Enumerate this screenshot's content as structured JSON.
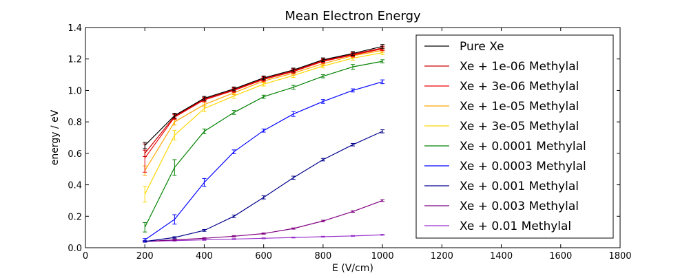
{
  "chart_data": {
    "type": "line",
    "title": "Mean Electron Energy",
    "xlabel": "E (V/cm)",
    "ylabel": "energy / eV",
    "xlim": [
      0,
      1800
    ],
    "ylim": [
      0,
      1.4
    ],
    "xticks": [
      0,
      200,
      400,
      600,
      800,
      1000,
      1200,
      1400,
      1600,
      1800
    ],
    "yticks": [
      0.0,
      0.2,
      0.4,
      0.6,
      0.8,
      1.0,
      1.2,
      1.4
    ],
    "xticklabels": [
      "0",
      "200",
      "400",
      "600",
      "800",
      "1000",
      "1200",
      "1400",
      "1600",
      "1800"
    ],
    "yticklabels": [
      "0.0",
      "0.2",
      "0.4",
      "0.6",
      "0.8",
      "1.0",
      "1.2",
      "1.4"
    ],
    "grid": false,
    "legend_position": "right",
    "x": [
      200,
      300,
      400,
      500,
      600,
      700,
      800,
      900,
      1000
    ],
    "series": [
      {
        "name": "Pure Xe",
        "color": "#000000",
        "values": [
          0.65,
          0.84,
          0.95,
          1.01,
          1.08,
          1.13,
          1.195,
          1.235,
          1.28
        ],
        "errors": [
          0.02,
          0.015,
          0.012,
          0.012,
          0.012,
          0.012,
          0.012,
          0.012,
          0.012
        ]
      },
      {
        "name": "Xe + 1e-06 Methylal",
        "color": "#cc0000",
        "values": [
          0.6,
          0.835,
          0.945,
          1.005,
          1.075,
          1.125,
          1.19,
          1.23,
          1.27
        ],
        "errors": [
          0.02,
          0.015,
          0.012,
          0.012,
          0.012,
          0.012,
          0.012,
          0.012,
          0.012
        ]
      },
      {
        "name": "Xe + 3e-06 Methylal",
        "color": "#ee0000",
        "values": [
          0.57,
          0.83,
          0.94,
          1.0,
          1.07,
          1.12,
          1.185,
          1.225,
          1.265
        ],
        "errors": [
          0.09,
          0.015,
          0.012,
          0.012,
          0.012,
          0.012,
          0.012,
          0.012,
          0.012
        ]
      },
      {
        "name": "Xe + 1e-05 Methylal",
        "color": "#ffa500",
        "values": [
          0.49,
          0.8,
          0.91,
          0.985,
          1.06,
          1.11,
          1.17,
          1.22,
          1.255
        ],
        "errors": [
          0.03,
          0.02,
          0.015,
          0.012,
          0.012,
          0.012,
          0.012,
          0.012,
          0.012
        ]
      },
      {
        "name": "Xe + 3e-05 Methylal",
        "color": "#ffd700",
        "values": [
          0.34,
          0.715,
          0.885,
          0.965,
          1.04,
          1.095,
          1.155,
          1.205,
          1.24
        ],
        "errors": [
          0.05,
          0.03,
          0.02,
          0.015,
          0.012,
          0.012,
          0.012,
          0.012,
          0.012
        ]
      },
      {
        "name": "Xe + 0.0001 Methylal",
        "color": "#008000",
        "values": [
          0.13,
          0.51,
          0.74,
          0.86,
          0.96,
          1.02,
          1.09,
          1.15,
          1.185
        ],
        "errors": [
          0.03,
          0.05,
          0.015,
          0.012,
          0.01,
          0.012,
          0.01,
          0.015,
          0.01
        ]
      },
      {
        "name": "Xe + 0.0003 Methylal",
        "color": "#0000ff",
        "values": [
          0.05,
          0.18,
          0.415,
          0.61,
          0.745,
          0.85,
          0.93,
          1.0,
          1.055
        ],
        "errors": [
          0.008,
          0.03,
          0.025,
          0.012,
          0.01,
          0.015,
          0.012,
          0.01,
          0.012
        ]
      },
      {
        "name": "Xe + 0.001 Methylal",
        "color": "#00008b",
        "values": [
          0.04,
          0.065,
          0.11,
          0.2,
          0.32,
          0.445,
          0.56,
          0.655,
          0.74
        ],
        "errors": [
          0.005,
          0.005,
          0.006,
          0.008,
          0.01,
          0.01,
          0.008,
          0.008,
          0.01
        ]
      },
      {
        "name": "Xe + 0.003 Methylal",
        "color": "#800080",
        "values": [
          0.04,
          0.05,
          0.06,
          0.073,
          0.09,
          0.122,
          0.17,
          0.23,
          0.3
        ],
        "errors": [
          0.004,
          0.004,
          0.004,
          0.004,
          0.004,
          0.004,
          0.005,
          0.005,
          0.006
        ]
      },
      {
        "name": "Xe + 0.01 Methylal",
        "color": "#9932cc",
        "values": [
          0.04,
          0.045,
          0.05,
          0.055,
          0.06,
          0.065,
          0.07,
          0.075,
          0.082
        ],
        "errors": [
          0.003,
          0.003,
          0.003,
          0.003,
          0.003,
          0.003,
          0.003,
          0.003,
          0.003
        ]
      }
    ]
  }
}
